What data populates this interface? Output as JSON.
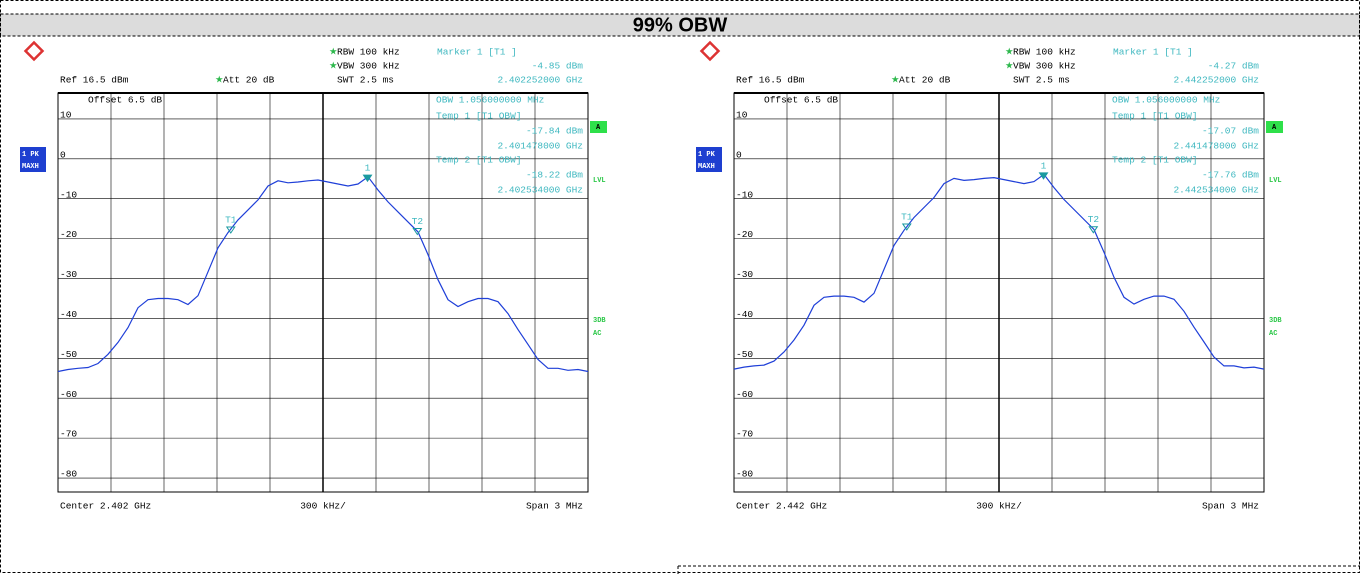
{
  "title": "99% OBW",
  "chart_data": [
    {
      "type": "line",
      "rbw": "RBW 100 kHz",
      "vbw": "VBW 300 kHz",
      "ref": "Ref  16.5 dBm",
      "att": "Att  20 dB",
      "swt": "SWT 2.5 ms",
      "offset": "Offset  6.5 dB",
      "obw": "OBW   1.056000000 MHz",
      "trace_label": "1 PK",
      "trace_mode": "MAXH",
      "side_labels": [
        "A",
        "LVL",
        "3DB",
        "AC"
      ],
      "center": "Center 2.402 GHz",
      "division": "300 kHz/",
      "span": "Span 3 MHz",
      "ylim": [
        -83.5,
        16.5
      ],
      "yticks": [
        10,
        0,
        -10,
        -20,
        -30,
        -40,
        -50,
        -60,
        -70,
        -80
      ],
      "xlim": [
        2.4005,
        2.4035
      ],
      "grid": true,
      "series": [
        {
          "color": "#1f3fd8",
          "values": [
            -53.3,
            -52.8,
            -52.5,
            -52.3,
            -51.3,
            -49.0,
            -46.0,
            -42.3,
            -37.3,
            -35.3,
            -35.0,
            -35.0,
            -35.3,
            -36.5,
            -34.3,
            -28.3,
            -22.3,
            -18.5,
            -15.3,
            -12.8,
            -10.3,
            -6.8,
            -5.5,
            -6.0,
            -5.8,
            -5.5,
            -5.3,
            -5.8,
            -6.3,
            -6.8,
            -6.3,
            -4.5,
            -7.8,
            -10.8,
            -13.3,
            -15.8,
            -18.3,
            -24.0,
            -30.3,
            -35.3,
            -37.0,
            -35.8,
            -35.0,
            -35.0,
            -35.8,
            -38.8,
            -42.8,
            -46.5,
            -50.3,
            -52.5,
            -52.5,
            -53.0,
            -52.8,
            -53.3
          ]
        }
      ],
      "markers": [
        {
          "name": "1",
          "header": "Marker 1 [T1 ]",
          "value": -4.85,
          "value_label": "-4.85 dBm",
          "freq": 2.402252,
          "freq_label": "2.402252000 GHz"
        },
        {
          "name": "T1",
          "header": "Temp 1 [T1 OBW]",
          "value": -17.84,
          "value_label": "-17.84 dBm",
          "freq": 2.401478,
          "freq_label": "2.401478000 GHz"
        },
        {
          "name": "T2",
          "header": "Temp 2 [T1 OBW]",
          "value": -18.22,
          "value_label": "-18.22 dBm",
          "freq": 2.402534,
          "freq_label": "2.402534000 GHz"
        }
      ]
    },
    {
      "type": "line",
      "rbw": "RBW 100 kHz",
      "vbw": "VBW 300 kHz",
      "ref": "Ref  16.5 dBm",
      "att": "Att  20 dB",
      "swt": "SWT 2.5 ms",
      "offset": "Offset  6.5 dB",
      "obw": "OBW   1.056000000 MHz",
      "trace_label": "1 PK",
      "trace_mode": "MAXH",
      "side_labels": [
        "A",
        "LVL",
        "3DB",
        "AC"
      ],
      "center": "Center 2.442 GHz",
      "division": "300 kHz/",
      "span": "Span 3 MHz",
      "ylim": [
        -83.5,
        16.5
      ],
      "yticks": [
        10,
        0,
        -10,
        -20,
        -30,
        -40,
        -50,
        -60,
        -70,
        -80
      ],
      "xlim": [
        2.4405,
        2.4435
      ],
      "grid": true,
      "series": [
        {
          "color": "#1f3fd8",
          "values": [
            -52.7,
            -52.2,
            -51.9,
            -51.7,
            -50.7,
            -48.4,
            -45.4,
            -41.7,
            -36.7,
            -34.7,
            -34.4,
            -34.4,
            -34.7,
            -35.9,
            -33.7,
            -27.7,
            -21.7,
            -17.9,
            -14.7,
            -12.2,
            -9.7,
            -6.2,
            -4.9,
            -5.4,
            -5.2,
            -4.9,
            -4.7,
            -5.2,
            -5.7,
            -6.2,
            -5.7,
            -3.9,
            -7.2,
            -10.2,
            -12.7,
            -15.2,
            -17.7,
            -23.4,
            -29.7,
            -34.7,
            -36.4,
            -35.2,
            -34.4,
            -34.4,
            -35.2,
            -38.2,
            -42.2,
            -45.9,
            -49.7,
            -51.9,
            -51.9,
            -52.4,
            -52.2,
            -52.7
          ]
        }
      ],
      "markers": [
        {
          "name": "1",
          "header": "Marker 1 [T1 ]",
          "value": -4.27,
          "value_label": "-4.27 dBm",
          "freq": 2.442252,
          "freq_label": "2.442252000 GHz"
        },
        {
          "name": "T1",
          "header": "Temp 1 [T1 OBW]",
          "value": -17.07,
          "value_label": "-17.07 dBm",
          "freq": 2.441478,
          "freq_label": "2.441478000 GHz"
        },
        {
          "name": "T2",
          "header": "Temp 2 [T1 OBW]",
          "value": -17.76,
          "value_label": "-17.76 dBm",
          "freq": 2.442534,
          "freq_label": "2.442534000 GHz"
        }
      ]
    }
  ]
}
